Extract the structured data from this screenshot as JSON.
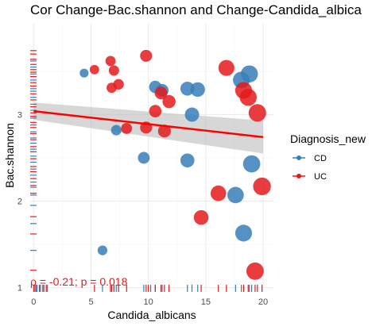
{
  "chart_data": {
    "type": "scatter",
    "title": "Cor Change-Bac.shannon and Change-Candida_albica",
    "xlabel": "Candida_albicans",
    "ylabel": "Bac.shannon",
    "xlim": [
      -0.3,
      20.9
    ],
    "ylim": [
      0.95,
      4.05
    ],
    "x_ticks": [
      0,
      5,
      10,
      15,
      20
    ],
    "y_ticks": [
      1,
      2,
      3
    ],
    "grid": true,
    "legend": {
      "title": "Diagnosis_new",
      "position": "right",
      "entries": [
        {
          "label": "CD",
          "color": "#377eb8"
        },
        {
          "label": "UC",
          "color": "#e41a1c"
        }
      ]
    },
    "annotation": "ρ = -0.21; p = 0.018",
    "regression": {
      "x": [
        0,
        20
      ],
      "y": [
        3.04,
        2.74
      ],
      "band_low": [
        2.94,
        2.55
      ],
      "band_high": [
        3.14,
        2.93
      ]
    },
    "series": [
      {
        "name": "CD",
        "color": "#377eb8",
        "points": [
          [
            4.4,
            3.48
          ],
          [
            7.2,
            2.82
          ],
          [
            9.6,
            2.5
          ],
          [
            10.6,
            3.32
          ],
          [
            11.2,
            3.28
          ],
          [
            13.4,
            3.3
          ],
          [
            14.3,
            3.29
          ],
          [
            13.8,
            3.0
          ],
          [
            13.4,
            2.47
          ],
          [
            17.6,
            2.07
          ],
          [
            18.1,
            3.4
          ],
          [
            18.8,
            3.47
          ],
          [
            18.3,
            1.63
          ],
          [
            19.0,
            2.43
          ],
          [
            6.0,
            1.43
          ]
        ]
      },
      {
        "name": "UC",
        "color": "#e41a1c",
        "points": [
          [
            5.3,
            3.52
          ],
          [
            6.7,
            3.62
          ],
          [
            7.0,
            3.51
          ],
          [
            7.4,
            3.35
          ],
          [
            6.8,
            3.31
          ],
          [
            9.8,
            3.68
          ],
          [
            8.1,
            2.84
          ],
          [
            9.8,
            2.85
          ],
          [
            10.6,
            3.04
          ],
          [
            11.1,
            3.25
          ],
          [
            11.8,
            3.15
          ],
          [
            11.4,
            2.81
          ],
          [
            16.8,
            3.54
          ],
          [
            18.3,
            3.28
          ],
          [
            18.7,
            3.2
          ],
          [
            19.5,
            3.02
          ],
          [
            16.1,
            2.09
          ],
          [
            19.9,
            2.17
          ],
          [
            14.6,
            1.81
          ],
          [
            19.3,
            1.19
          ]
        ]
      }
    ],
    "rug_y": {
      "CD": [
        3.62,
        3.55,
        3.47,
        3.4,
        3.3,
        3.27,
        3.2,
        3.12,
        3.05,
        2.96,
        2.88,
        2.8,
        2.73,
        2.67,
        2.6,
        2.52,
        2.45,
        2.37,
        2.3,
        2.22,
        2.16,
        2.07,
        1.95,
        1.74,
        1.43
      ],
      "UC": [
        3.74,
        3.7,
        3.64,
        3.58,
        3.52,
        3.49,
        3.44,
        3.37,
        3.33,
        3.24,
        3.17,
        3.09,
        3.02,
        2.98,
        2.91,
        2.85,
        2.78,
        2.71,
        2.63,
        2.57,
        2.49,
        2.4,
        2.34,
        2.26,
        2.18,
        2.09,
        1.82,
        1.62,
        1.2
      ]
    },
    "rug_x": {
      "CD": [
        0.1,
        0.3,
        0.6,
        0.9,
        1.2,
        6.0,
        7.2,
        9.6,
        10.2,
        10.6,
        11.2,
        13.4,
        13.8,
        14.3,
        17.6,
        18.1,
        18.3,
        18.8,
        19.0
      ],
      "UC": [
        0.0,
        0.2,
        0.5,
        0.8,
        1.1,
        5.3,
        6.7,
        6.8,
        7.0,
        7.4,
        8.1,
        9.8,
        10.0,
        10.6,
        11.1,
        11.4,
        11.8,
        14.6,
        16.1,
        16.8,
        18.3,
        18.7,
        19.3,
        19.5,
        19.9
      ]
    }
  }
}
